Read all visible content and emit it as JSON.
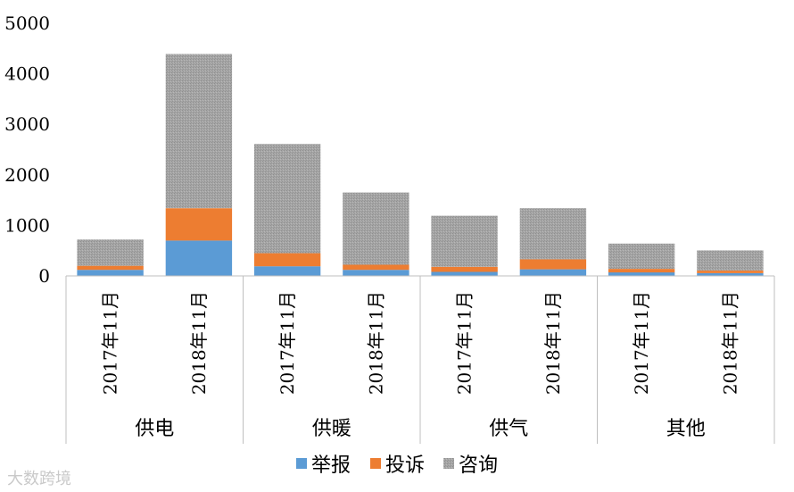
{
  "chart_data": {
    "type": "bar",
    "stacked": true,
    "y_ticks": [
      "0",
      "1000",
      "2000",
      "3000",
      "4000",
      "5000"
    ],
    "ylim": [
      0,
      5000
    ],
    "grid": false,
    "legend_position": "bottom",
    "groups": [
      {
        "name": "供电",
        "subcategories": [
          "2017年11月",
          "2018年11月"
        ]
      },
      {
        "name": "供暖",
        "subcategories": [
          "2017年11月",
          "2018年11月"
        ]
      },
      {
        "name": "供气",
        "subcategories": [
          "2017年11月",
          "2018年11月"
        ]
      },
      {
        "name": "其他",
        "subcategories": [
          "2017年11月",
          "2018年11月"
        ]
      }
    ],
    "series": [
      {
        "name": "举报",
        "color": "#5b9bd5",
        "values": [
          120,
          700,
          190,
          120,
          80,
          130,
          70,
          55
        ]
      },
      {
        "name": "投诉",
        "color": "#ed7d31",
        "values": [
          80,
          640,
          260,
          100,
          100,
          200,
          70,
          50
        ]
      },
      {
        "name": "咨询",
        "color": "#a5a5a5",
        "values": [
          520,
          3050,
          2160,
          1430,
          1010,
          1010,
          500,
          400
        ]
      }
    ]
  },
  "watermark": "大数跨境"
}
